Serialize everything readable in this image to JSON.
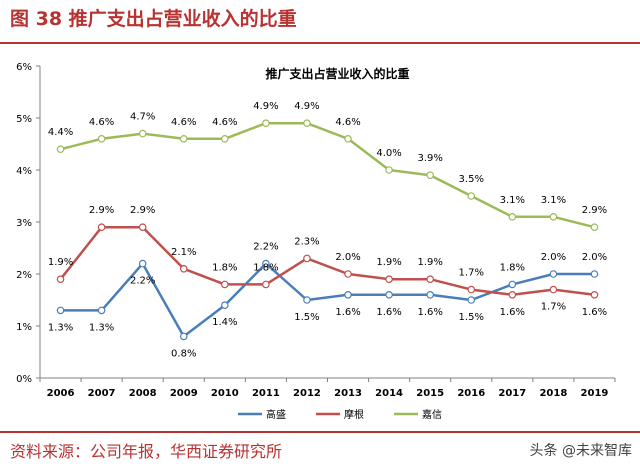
{
  "figure": {
    "title": "图 38  推广支出占营业收入的比重",
    "source": "资料来源：公司年报，华西证券研究所",
    "watermark": "头条 @未来智库"
  },
  "chart_data": {
    "type": "line",
    "title": "推广支出占营业收入的比重",
    "xlabel": "",
    "ylabel": "",
    "x": [
      "2006",
      "2007",
      "2008",
      "2009",
      "2010",
      "2011",
      "2012",
      "2013",
      "2014",
      "2015",
      "2016",
      "2017",
      "2018",
      "2019"
    ],
    "ylim": [
      0,
      6
    ],
    "yticks": [
      "0%",
      "1%",
      "2%",
      "3%",
      "4%",
      "5%",
      "6%"
    ],
    "legend_position": "bottom",
    "grid": false,
    "series": [
      {
        "name": "高盛",
        "color": "#4a7ebb",
        "values": [
          1.3,
          1.3,
          2.2,
          0.8,
          1.4,
          2.2,
          1.5,
          1.6,
          1.6,
          1.6,
          1.5,
          1.8,
          2.0,
          2.0
        ],
        "labels": [
          "1.3%",
          "1.3%",
          "2.2%",
          "0.8%",
          "1.4%",
          "2.2%",
          "1.5%",
          "1.6%",
          "1.6%",
          "1.6%",
          "1.5%",
          "1.8%",
          "2.0%",
          "2.0%"
        ]
      },
      {
        "name": "摩根",
        "color": "#c0504d",
        "values": [
          1.9,
          2.9,
          2.9,
          2.1,
          1.8,
          1.8,
          2.3,
          2.0,
          1.9,
          1.9,
          1.7,
          1.6,
          1.7,
          1.6
        ],
        "labels": [
          "1.9%",
          "2.9%",
          "2.9%",
          "2.1%",
          "1.8%",
          "1.8%",
          "2.3%",
          "2.0%",
          "1.9%",
          "1.9%",
          "1.7%",
          "1.6%",
          "1.7%",
          "1.6%"
        ]
      },
      {
        "name": "嘉信",
        "color": "#9bbb59",
        "values": [
          4.4,
          4.6,
          4.7,
          4.6,
          4.6,
          4.9,
          4.9,
          4.6,
          4.0,
          3.9,
          3.5,
          3.1,
          3.1,
          2.9
        ],
        "labels": [
          "4.4%",
          "4.6%",
          "4.7%",
          "4.6%",
          "4.6%",
          "4.9%",
          "4.9%",
          "4.6%",
          "4.0%",
          "3.9%",
          "3.5%",
          "3.1%",
          "3.1%",
          "2.9%"
        ]
      }
    ]
  }
}
